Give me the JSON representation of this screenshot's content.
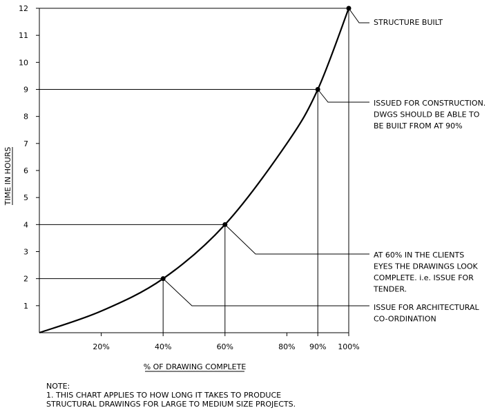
{
  "chart_data": {
    "type": "line",
    "x": [
      0,
      20,
      40,
      60,
      80,
      90,
      100
    ],
    "y": [
      0,
      0.8,
      2,
      4,
      7,
      9,
      12
    ],
    "xlabel": "% OF DRAWING COMPLETE",
    "ylabel": "TIME IN HOURS",
    "xlim": [
      0,
      100
    ],
    "ylim": [
      0,
      12
    ],
    "x_ticks": [
      20,
      40,
      60,
      80,
      90,
      100
    ],
    "x_tick_labels": [
      "20%",
      "40%",
      "60%",
      "80%",
      "90%",
      "100%"
    ],
    "y_ticks": [
      1,
      2,
      3,
      4,
      5,
      6,
      7,
      8,
      9,
      10,
      11,
      12
    ],
    "y_tick_labels": [
      "1",
      "2",
      "3",
      "4",
      "5",
      "6",
      "7",
      "8",
      "9",
      "10",
      "11",
      "12"
    ],
    "markers": [
      {
        "x": 40,
        "y": 2
      },
      {
        "x": 60,
        "y": 4
      },
      {
        "x": 90,
        "y": 9
      },
      {
        "x": 100,
        "y": 12
      }
    ],
    "annotations": [
      {
        "lines": [
          "STRUCTURE BUILT"
        ],
        "x": 100,
        "y": 12
      },
      {
        "lines": [
          "ISSUED FOR CONSTRUCTION.",
          "DWGS SHOULD BE ABLE TO",
          "BE BUILT FROM AT 90%"
        ],
        "x": 90,
        "y": 9
      },
      {
        "lines": [
          "AT 60% IN THE CLIENTS",
          "EYES THE DRAWINGS LOOK",
          "COMPLETE. i.e. ISSUE FOR",
          "TENDER."
        ],
        "x": 60,
        "y": 4
      },
      {
        "lines": [
          "ISSUE FOR ARCHITECTURAL",
          "CO-ORDINATION"
        ],
        "x": 40,
        "y": 2
      }
    ],
    "grid": false
  },
  "note": {
    "heading": "NOTE:",
    "line1": "1. THIS CHART APPLIES TO HOW LONG IT TAKES TO PRODUCE",
    "line2": "STRUCTURAL DRAWINGS FOR LARGE TO MEDIUM SIZE PROJECTS."
  }
}
